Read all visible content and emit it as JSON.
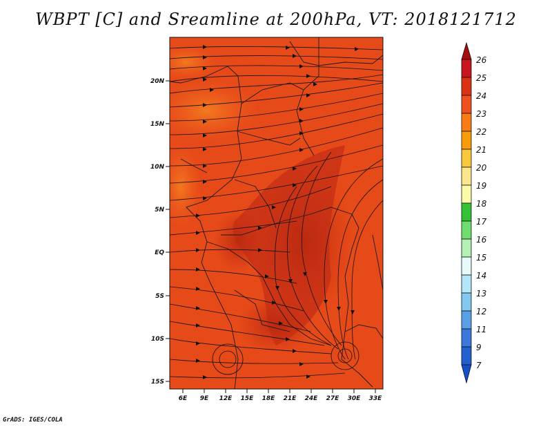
{
  "title": "WBPT [C] and Sreamline at 200hPa, VT: 2018121712",
  "credit": "GrADS: IGES/COLA",
  "map": {
    "lat_ticks": [
      "20N",
      "15N",
      "10N",
      "5N",
      "EQ",
      "5S",
      "10S",
      "15S"
    ],
    "lon_ticks": [
      "6E",
      "9E",
      "12E",
      "15E",
      "18E",
      "21E",
      "24E",
      "27E",
      "30E",
      "33E"
    ],
    "field_colors": {
      "background": "#e64a19",
      "warm": "#c62e14",
      "cool": "#f05f1e",
      "coolest": "#f58220"
    }
  },
  "colorbar": {
    "levels": [
      "26",
      "25",
      "24",
      "23",
      "22",
      "21",
      "20",
      "19",
      "18",
      "17",
      "16",
      "15",
      "14",
      "13",
      "12",
      "11",
      "9",
      "7"
    ],
    "colors": [
      "#a50f0f",
      "#c8141e",
      "#dc3214",
      "#f0501e",
      "#f87b14",
      "#fa9b0a",
      "#fac83c",
      "#fae68c",
      "#fafaa8",
      "#34c234",
      "#6edc6e",
      "#b4f0b4",
      "#e6fafa",
      "#b4e6fa",
      "#82c8f0",
      "#5aa0e6",
      "#3c78dc",
      "#2060d0",
      "#1450c8"
    ]
  }
}
